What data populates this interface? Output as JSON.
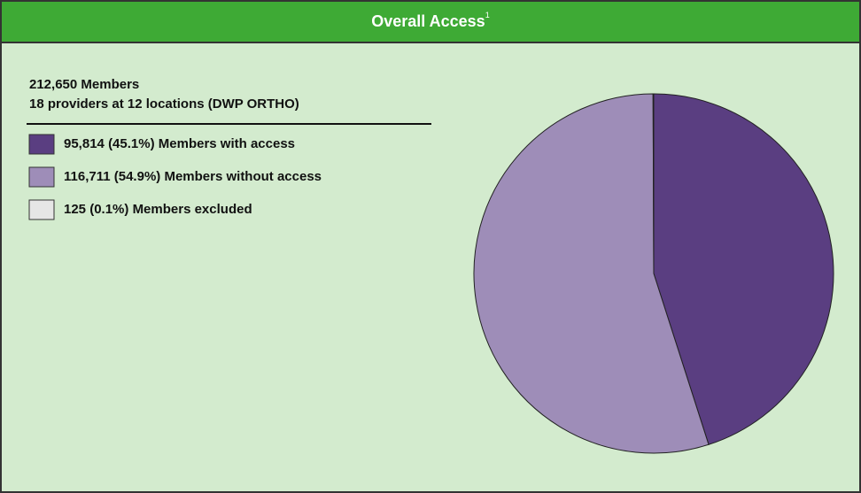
{
  "chart_data": {
    "type": "pie",
    "title": "Overall Access",
    "title_superscript": "1",
    "subtitle": [
      "212,650 Members",
      "18 providers at 12 locations (DWP ORTHO)"
    ],
    "series": [
      {
        "name": "Members with access",
        "color": "#5a3e81",
        "values": [
          95814
        ],
        "value_labels": [
          "95,814"
        ],
        "percent_labels": [
          "(45.1%)"
        ]
      },
      {
        "name": "Members without access",
        "color": "#9e8db8",
        "values": [
          116711
        ],
        "value_labels": [
          "116,711"
        ],
        "percent_labels": [
          "(54.9%)"
        ]
      },
      {
        "name": "Members excluded",
        "color": "#e6e6e6",
        "values": [
          125
        ],
        "value_labels": [
          "125"
        ],
        "percent_labels": [
          "(0.1%)"
        ]
      }
    ]
  }
}
